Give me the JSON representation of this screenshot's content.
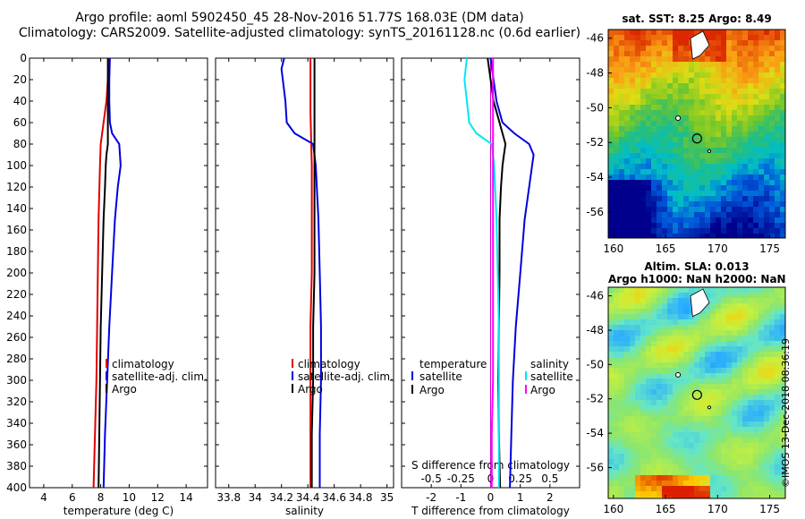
{
  "header": {
    "line1": "Argo profile: aoml 5902450_45 28-Nov-2016 51.77S 168.03E (DM data)",
    "line2": "Climatology: CARS2009. Satellite-adjusted climatology: synTS_20161128.nc (0.6d earlier)"
  },
  "colors": {
    "red": "#e00000",
    "blue": "#0000dd",
    "black": "#000000",
    "cyan": "#00e8f0",
    "magenta": "#ff00ff"
  },
  "watermark": "©IMOS 13-Dec-2018 08:36:19",
  "chart_data": [
    {
      "type": "line",
      "panel": "temperature",
      "xlabel": "temperature (deg C)",
      "xlim": [
        3,
        15.5
      ],
      "xticks": [
        4,
        6,
        8,
        10,
        12,
        14
      ],
      "ylim": [
        0,
        400
      ],
      "yticks": [
        0,
        20,
        40,
        60,
        80,
        100,
        120,
        140,
        160,
        180,
        200,
        220,
        240,
        260,
        280,
        300,
        320,
        340,
        360,
        380,
        400
      ],
      "ylabel_invert": true,
      "legend": [
        {
          "label": "climatology",
          "color": "#e00000"
        },
        {
          "label": "satellite-adj. clim.",
          "color": "#0000dd"
        },
        {
          "label": "Argo",
          "color": "#000000"
        }
      ],
      "series": [
        {
          "name": "climatology",
          "color": "#e00000",
          "depth": [
            0,
            20,
            40,
            60,
            80,
            100,
            150,
            200,
            250,
            300,
            350,
            400
          ],
          "values": [
            8.6,
            8.5,
            8.4,
            8.2,
            8.0,
            7.95,
            7.85,
            7.8,
            7.75,
            7.7,
            7.6,
            7.5
          ]
        },
        {
          "name": "satellite-adj. clim.",
          "color": "#0000dd",
          "depth": [
            0,
            20,
            40,
            60,
            70,
            80,
            100,
            120,
            150,
            200,
            250,
            300,
            350,
            400
          ],
          "values": [
            8.65,
            8.6,
            8.6,
            8.65,
            8.8,
            9.3,
            9.4,
            9.2,
            9.0,
            8.8,
            8.6,
            8.45,
            8.3,
            8.2
          ]
        },
        {
          "name": "Argo",
          "color": "#000000",
          "depth": [
            0,
            20,
            40,
            60,
            80,
            90,
            100,
            120,
            150,
            200,
            250,
            300,
            350,
            400
          ],
          "values": [
            8.5,
            8.5,
            8.5,
            8.5,
            8.5,
            8.4,
            8.35,
            8.3,
            8.2,
            8.1,
            8.0,
            7.95,
            7.9,
            7.85
          ]
        }
      ]
    },
    {
      "type": "line",
      "panel": "salinity",
      "xlabel": "salinity",
      "xlim": [
        33.7,
        35.05
      ],
      "xticks": [
        33.8,
        34,
        34.2,
        34.4,
        34.6,
        34.8,
        35
      ],
      "ylim": [
        0,
        400
      ],
      "legend": [
        {
          "label": "climatology",
          "color": "#e00000"
        },
        {
          "label": "satellite-adj. clim.",
          "color": "#0000dd"
        },
        {
          "label": "Argo",
          "color": "#000000"
        }
      ],
      "series": [
        {
          "name": "climatology",
          "color": "#e00000",
          "depth": [
            0,
            50,
            100,
            150,
            200,
            250,
            300,
            350,
            400
          ],
          "values": [
            34.42,
            34.42,
            34.43,
            34.43,
            34.43,
            34.42,
            34.42,
            34.42,
            34.42
          ]
        },
        {
          "name": "satellite-adj. clim.",
          "color": "#0000dd",
          "depth": [
            0,
            10,
            40,
            60,
            70,
            80,
            100,
            150,
            200,
            250,
            300,
            350,
            400
          ],
          "values": [
            34.22,
            34.2,
            34.23,
            34.24,
            34.3,
            34.44,
            34.46,
            34.48,
            34.49,
            34.5,
            34.5,
            34.49,
            34.49
          ]
        },
        {
          "name": "Argo",
          "color": "#000000",
          "depth": [
            0,
            50,
            100,
            150,
            200,
            250,
            300,
            350,
            400
          ],
          "values": [
            34.45,
            34.45,
            34.45,
            34.45,
            34.45,
            34.44,
            34.44,
            34.43,
            34.43
          ]
        }
      ]
    },
    {
      "type": "line",
      "panel": "difference",
      "xlabel": "T difference from climatology",
      "xlabel_top": "S difference from climatology",
      "xlim": [
        -3,
        3
      ],
      "xticks": [
        -2,
        -1,
        0,
        1,
        2
      ],
      "xticks_top": [
        -0.5,
        -0.25,
        0,
        0.25,
        0.5
      ],
      "ylim": [
        0,
        400
      ],
      "legend_temperature": {
        "title": "temperature",
        "items": [
          {
            "label": "satellite",
            "color": "#0000dd"
          },
          {
            "label": "Argo",
            "color": "#000000"
          }
        ]
      },
      "legend_salinity": {
        "title": "salinity",
        "items": [
          {
            "label": "satellite",
            "color": "#00e8f0"
          },
          {
            "label": "Argo",
            "color": "#ff00ff"
          }
        ]
      },
      "series": [
        {
          "name": "T satellite",
          "color": "#0000dd",
          "scale": "T",
          "depth": [
            0,
            20,
            40,
            60,
            70,
            80,
            90,
            100,
            120,
            150,
            200,
            250,
            300,
            350,
            400
          ],
          "values": [
            0.0,
            0.1,
            0.2,
            0.4,
            0.8,
            1.3,
            1.45,
            1.4,
            1.3,
            1.15,
            1.0,
            0.85,
            0.75,
            0.7,
            0.65
          ]
        },
        {
          "name": "T Argo",
          "color": "#000000",
          "scale": "T",
          "depth": [
            0,
            20,
            40,
            60,
            80,
            90,
            100,
            120,
            150,
            200,
            250,
            300,
            350,
            400
          ],
          "values": [
            -0.1,
            0.0,
            0.1,
            0.3,
            0.5,
            0.45,
            0.4,
            0.35,
            0.3,
            0.3,
            0.28,
            0.26,
            0.28,
            0.32
          ]
        },
        {
          "name": "S satellite",
          "color": "#00e8f0",
          "scale": "S",
          "depth": [
            0,
            20,
            40,
            60,
            70,
            80,
            100,
            150,
            200,
            250,
            300,
            350,
            400
          ],
          "values": [
            -0.2,
            -0.22,
            -0.2,
            -0.18,
            -0.12,
            0.01,
            0.03,
            0.05,
            0.06,
            0.07,
            0.07,
            0.07,
            0.07
          ]
        },
        {
          "name": "S Argo",
          "color": "#ff00ff",
          "scale": "S",
          "depth": [
            0,
            50,
            100,
            150,
            200,
            250,
            300,
            350,
            400
          ],
          "values": [
            0.02,
            0.02,
            0.02,
            0.02,
            0.02,
            0.02,
            0.02,
            0.01,
            0.01
          ]
        }
      ]
    },
    {
      "type": "heatmap",
      "panel": "sst-map",
      "title": "sat. SST: 8.25 Argo: 8.49",
      "xlim": [
        159.5,
        176.5
      ],
      "ylim": [
        -57.5,
        -45.5
      ],
      "xticks": [
        160,
        165,
        170,
        175
      ],
      "yticks": [
        -46,
        -48,
        -50,
        -52,
        -54,
        -56
      ],
      "float_position": {
        "lon": 168.03,
        "lat": -51.77
      }
    },
    {
      "type": "heatmap",
      "panel": "sla-map",
      "title_line1": "Altim. SLA: 0.013",
      "title_line2": "Argo h1000: NaN h2000: NaN",
      "xlim": [
        159.5,
        176.5
      ],
      "ylim": [
        -57.8,
        -45.5
      ],
      "xticks": [
        160,
        165,
        170,
        175
      ],
      "yticks": [
        -46,
        -48,
        -50,
        -52,
        -54,
        -56
      ],
      "float_position": {
        "lon": 168.03,
        "lat": -51.77
      }
    }
  ]
}
